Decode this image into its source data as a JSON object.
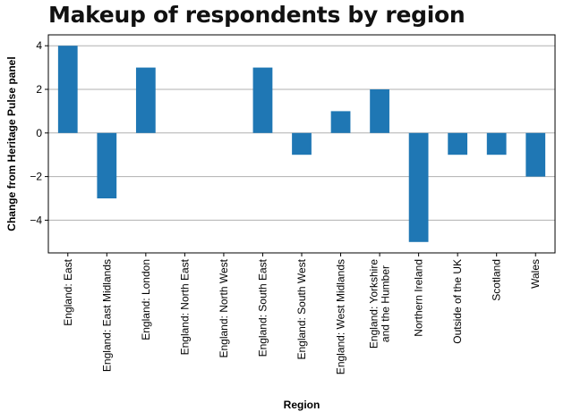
{
  "chart_data": {
    "type": "bar",
    "title": "Makeup of respondents by region",
    "xlabel": "Region",
    "ylabel": "Change from Heritage Pulse panel",
    "categories": [
      [
        "England: East"
      ],
      [
        "England: East Midlands"
      ],
      [
        "England: London"
      ],
      [
        "England: North East"
      ],
      [
        "England: North West"
      ],
      [
        "England: South East"
      ],
      [
        "England: South West"
      ],
      [
        "England: West Midlands"
      ],
      [
        "England: Yorkshire",
        "and the Humber"
      ],
      [
        "Northern Ireland"
      ],
      [
        "Outside of the UK"
      ],
      [
        "Scotland"
      ],
      [
        "Wales"
      ]
    ],
    "values": [
      4,
      -3,
      3,
      0,
      0,
      3,
      -1,
      1,
      2,
      -5,
      -1,
      -1,
      -2
    ],
    "ylim": [
      -5.5,
      4.5
    ],
    "yticks": [
      -4,
      -2,
      0,
      2,
      4
    ],
    "ytick_labels": [
      "−4",
      "−2",
      "0",
      "2",
      "4"
    ],
    "grid": "horizontal",
    "bar_color": "#1f77b4",
    "grid_color": "#b0b0b0"
  }
}
